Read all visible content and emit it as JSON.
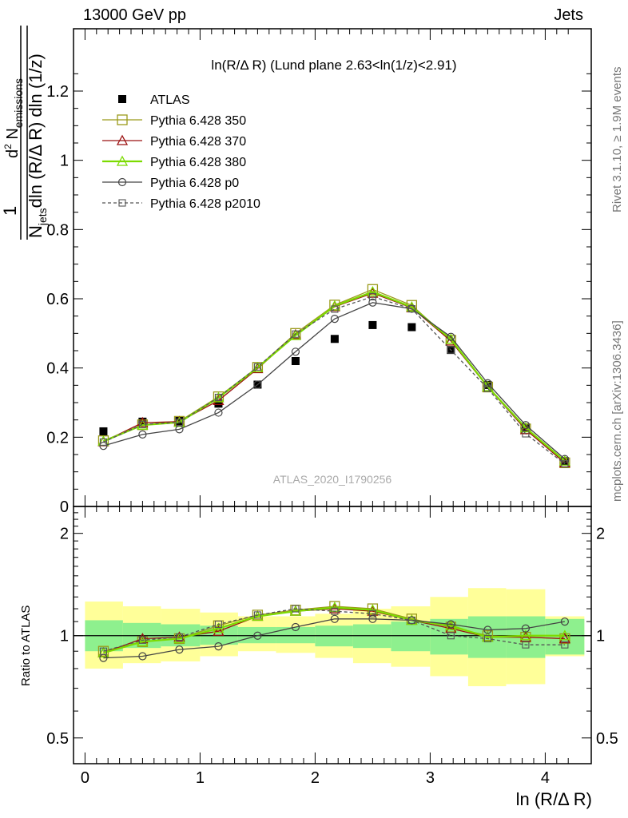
{
  "header": {
    "left": "13000 GeV pp",
    "right": "Jets"
  },
  "side_text": {
    "rivet": "Rivet 3.1.10, ≥ 1.9M events",
    "mcplots": "mcplots.cern.ch [arXiv:1306.3436]"
  },
  "colors": {
    "p350": "#9a9a1a",
    "p370": "#9b1010",
    "p380": "#7cdb00",
    "p0": "#444444",
    "p2010": "#555555",
    "band_inner": "#8ef08e",
    "band_outer": "#ffff99"
  },
  "chart_data": [
    {
      "type": "line",
      "title": "ln(R/Δ R) (Lund plane 2.63<ln(1/z)<2.91)",
      "watermark": "ATLAS_2020_I1790256",
      "ylabel_parts": {
        "one": "1",
        "N": "N",
        "jets_sub": "jets",
        "dln": "dln (R/Δ R) dln (1/z)",
        "d2": "d",
        "sup2": "2",
        "Nnum": " N",
        "em_sub": "emissions"
      },
      "xlim": [
        -0.1,
        4.4
      ],
      "ylim": [
        0,
        1.38
      ],
      "yticks": [
        "0",
        "0.2",
        "0.4",
        "0.6",
        "0.8",
        "1",
        "1.2"
      ],
      "x": [
        0.16,
        0.5,
        0.82,
        1.16,
        1.5,
        1.83,
        2.17,
        2.5,
        2.84,
        3.18,
        3.5,
        3.83,
        4.17
      ],
      "series": [
        {
          "name": "ATLAS",
          "marker": "filled-square",
          "color": "#000000",
          "values": [
            0.217,
            0.245,
            0.247,
            0.297,
            0.352,
            0.42,
            0.484,
            0.524,
            0.518,
            0.452,
            0.351,
            0.228,
            0.131
          ]
        },
        {
          "name": "Pythia 6.428 350",
          "marker": "open-square",
          "color": "#9a9a1a",
          "values": [
            0.19,
            0.236,
            0.246,
            0.317,
            0.402,
            0.5,
            0.582,
            0.627,
            0.581,
            0.48,
            0.345,
            0.224,
            0.126
          ]
        },
        {
          "name": "Pythia 6.428 370",
          "marker": "open-triangle",
          "color": "#9b1010",
          "values": [
            0.187,
            0.242,
            0.245,
            0.306,
            0.398,
            0.496,
            0.577,
            0.616,
            0.574,
            0.478,
            0.345,
            0.222,
            0.126
          ]
        },
        {
          "name": "Pythia 6.428 380",
          "marker": "open-triangle",
          "color": "#7cdb00",
          "values": [
            0.188,
            0.235,
            0.243,
            0.314,
            0.401,
            0.494,
            0.579,
            0.62,
            0.576,
            0.483,
            0.346,
            0.227,
            0.131
          ]
        },
        {
          "name": "Pythia 6.428 p0",
          "marker": "open-circle",
          "color": "#444444",
          "values": [
            0.175,
            0.208,
            0.223,
            0.271,
            0.352,
            0.447,
            0.542,
            0.589,
            0.571,
            0.49,
            0.356,
            0.235,
            0.137
          ]
        },
        {
          "name": "Pythia 6.428 p2010",
          "marker": "small-square-dashed",
          "color": "#555555",
          "values": [
            0.186,
            0.237,
            0.243,
            0.315,
            0.403,
            0.498,
            0.57,
            0.606,
            0.571,
            0.452,
            0.341,
            0.21,
            0.123
          ]
        }
      ]
    },
    {
      "type": "line",
      "ylabel": "Ratio to ATLAS",
      "xlabel": "ln (R/Δ R)",
      "xlim": [
        -0.1,
        4.4
      ],
      "ylim": [
        0.42,
        2.4
      ],
      "log_y": true,
      "yticks": [
        "0.5",
        "1",
        "2"
      ],
      "xticks": [
        "0",
        "1",
        "2",
        "3",
        "4"
      ],
      "x_bins": [
        0,
        0.33,
        0.66,
        1.0,
        1.33,
        1.66,
        2.0,
        2.33,
        2.66,
        3.0,
        3.33,
        3.66,
        4.0,
        4.34
      ],
      "band_inner": {
        "low": [
          0.9,
          0.92,
          0.93,
          0.94,
          0.95,
          0.95,
          0.93,
          0.92,
          0.9,
          0.88,
          0.86,
          0.86,
          0.88
        ],
        "high": [
          1.11,
          1.09,
          1.08,
          1.07,
          1.06,
          1.06,
          1.07,
          1.08,
          1.1,
          1.12,
          1.14,
          1.14,
          1.12
        ]
      },
      "band_outer": {
        "low": [
          0.8,
          0.83,
          0.84,
          0.87,
          0.9,
          0.89,
          0.86,
          0.83,
          0.81,
          0.76,
          0.71,
          0.72,
          0.87
        ],
        "high": [
          1.26,
          1.22,
          1.2,
          1.17,
          1.14,
          1.14,
          1.16,
          1.2,
          1.22,
          1.3,
          1.38,
          1.37,
          1.14
        ]
      },
      "reference": 1,
      "x": [
        0.16,
        0.5,
        0.82,
        1.16,
        1.5,
        1.83,
        2.17,
        2.5,
        2.84,
        3.18,
        3.5,
        3.83,
        4.17
      ],
      "series": [
        {
          "name": "Pythia 6.428 350",
          "marker": "open-square",
          "color": "#9a9a1a",
          "values": [
            0.9,
            0.96,
            0.98,
            1.07,
            1.15,
            1.19,
            1.22,
            1.2,
            1.12,
            1.06,
            1.0,
            0.99,
            0.98
          ]
        },
        {
          "name": "Pythia 6.428 370",
          "marker": "open-triangle",
          "color": "#9b1010",
          "values": [
            0.89,
            0.98,
            0.99,
            1.03,
            1.14,
            1.18,
            1.2,
            1.18,
            1.11,
            1.05,
            0.99,
            0.99,
            0.98
          ]
        },
        {
          "name": "Pythia 6.428 380",
          "marker": "open-triangle",
          "color": "#7cdb00",
          "values": [
            0.89,
            0.96,
            0.98,
            1.05,
            1.14,
            1.18,
            1.21,
            1.19,
            1.11,
            1.07,
            0.99,
            1.0,
            1.0
          ]
        },
        {
          "name": "Pythia 6.428 p0",
          "marker": "open-circle",
          "color": "#444444",
          "values": [
            0.86,
            0.87,
            0.91,
            0.93,
            1.0,
            1.06,
            1.12,
            1.12,
            1.11,
            1.08,
            1.04,
            1.05,
            1.1
          ]
        },
        {
          "name": "Pythia 6.428 p2010",
          "marker": "small-square-dashed",
          "color": "#555555",
          "values": [
            0.9,
            0.97,
            0.99,
            1.08,
            1.15,
            1.2,
            1.18,
            1.16,
            1.11,
            1.0,
            0.98,
            0.94,
            0.94
          ]
        }
      ]
    }
  ]
}
